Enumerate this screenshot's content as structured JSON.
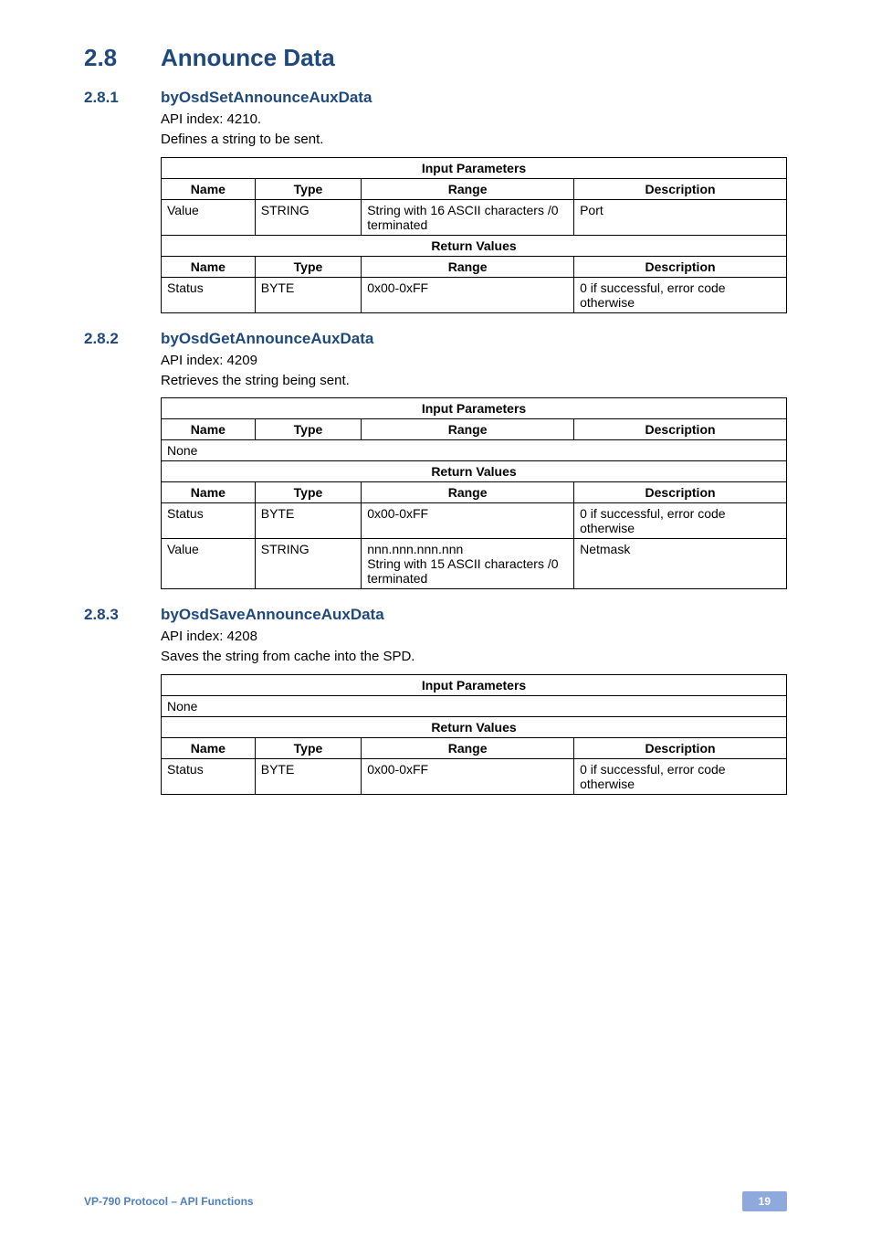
{
  "heading1": {
    "num": "2.8",
    "title": "Announce Data"
  },
  "sections": [
    {
      "num": "2.8.1",
      "title": "byOsdSetAnnounceAuxData",
      "api_index_label": "API index: 4210.",
      "desc": "Defines a string to be sent.",
      "table": {
        "input_header": "Input Parameters",
        "cols": {
          "name": "Name",
          "type": "Type",
          "range": "Range",
          "desc": "Description"
        },
        "input_rows": [
          {
            "name": "Value",
            "type": "STRING",
            "range": "String with 16 ASCII characters /0 terminated",
            "desc": "Port"
          }
        ],
        "return_header": "Return Values",
        "return_cols": {
          "name": "Name",
          "type": "Type",
          "range": "Range",
          "desc": "Description"
        },
        "return_rows": [
          {
            "name": "Status",
            "type": "BYTE",
            "range": "0x00-0xFF",
            "desc": "0 if successful, error code otherwise"
          }
        ]
      }
    },
    {
      "num": "2.8.2",
      "title": "byOsdGetAnnounceAuxData",
      "api_index_label": "API index: 4209",
      "desc": "Retrieves the string being sent.",
      "table": {
        "input_header": "Input Parameters",
        "cols": {
          "name": "Name",
          "type": "Type",
          "range": "Range",
          "desc": "Description"
        },
        "input_none": "None",
        "return_header": "Return Values",
        "return_cols": {
          "name": "Name",
          "type": "Type",
          "range": "Range",
          "desc": "Description"
        },
        "return_rows": [
          {
            "name": "Status",
            "type": "BYTE",
            "range": "0x00-0xFF",
            "desc": "0 if successful, error code otherwise"
          },
          {
            "name": "Value",
            "type": "STRING",
            "range": "nnn.nnn.nnn.nnn\nString with 15 ASCII characters /0 terminated",
            "desc": "Netmask"
          }
        ]
      }
    },
    {
      "num": "2.8.3",
      "title": "byOsdSaveAnnounceAuxData",
      "api_index_label": "API index: 4208",
      "desc": "Saves the string from cache into the SPD.",
      "table": {
        "input_header": "Input Parameters",
        "input_none": "None",
        "return_header": "Return Values",
        "return_cols": {
          "name": "Name",
          "type": "Type",
          "range": "Range",
          "desc": "Description"
        },
        "return_rows": [
          {
            "name": "Status",
            "type": "BYTE",
            "range": "0x00-0xFF",
            "desc": "0 if successful, error code otherwise"
          }
        ]
      }
    }
  ],
  "footer": {
    "left": "VP-790 Protocol –  API Functions",
    "page": "19"
  },
  "colors": {
    "heading": "#1f497d",
    "footer_text": "#4f81bd",
    "footer_badge_bg": "#8ea9db",
    "footer_badge_text": "#ffffff",
    "border": "#000000",
    "bg": "#ffffff"
  }
}
